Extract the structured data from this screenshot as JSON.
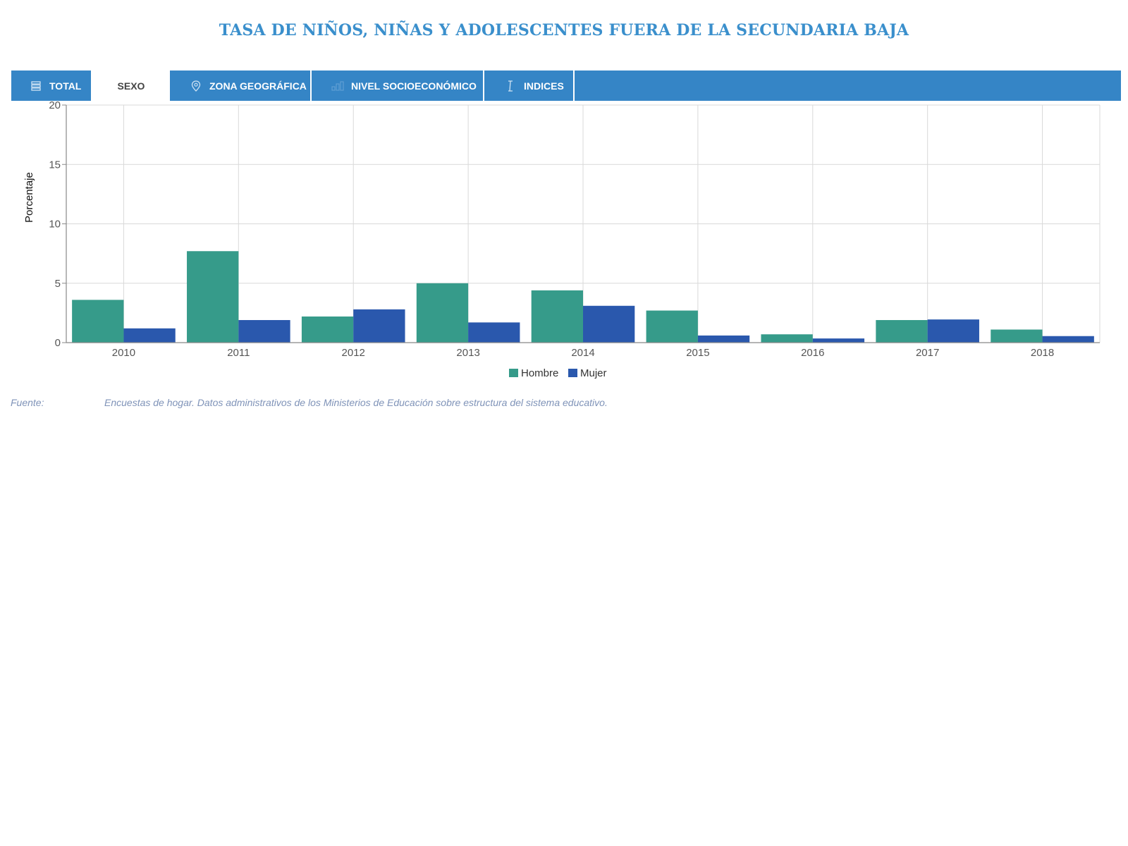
{
  "title": "TASA DE NIÑOS, NIÑAS Y ADOLESCENTES FUERA DE LA SECUNDARIA BAJA",
  "tabs": [
    {
      "label": "TOTAL",
      "icon": "list-icon",
      "active": false
    },
    {
      "label": "SEXO",
      "icon": "",
      "active": true
    },
    {
      "label": "ZONA GEOGRÁFICA",
      "icon": "map-pin-icon",
      "active": false
    },
    {
      "label": "NIVEL SOCIOECONÓMICO",
      "icon": "bar-levels-icon",
      "active": false
    },
    {
      "label": "INDICES",
      "icon": "i-beam-icon",
      "active": false
    }
  ],
  "colors": {
    "title": "#3a8fcc",
    "tabbar": "#3585c6",
    "hombre": "#369b8a",
    "mujer": "#2a58ad"
  },
  "chart_data": {
    "type": "bar",
    "categories": [
      "2010",
      "2011",
      "2012",
      "2013",
      "2014",
      "2015",
      "2016",
      "2017",
      "2018"
    ],
    "series": [
      {
        "name": "Hombre",
        "color": "#369b8a",
        "values": [
          3.6,
          7.7,
          2.2,
          5.0,
          4.4,
          2.7,
          0.7,
          1.9,
          1.1
        ]
      },
      {
        "name": "Mujer",
        "color": "#2a58ad",
        "values": [
          1.2,
          1.9,
          2.8,
          1.7,
          3.1,
          0.6,
          0.35,
          1.95,
          0.55
        ]
      }
    ],
    "ylabel": "Porcentaje",
    "xlabel": "",
    "ylim": [
      0,
      20
    ],
    "yticks": [
      0,
      5,
      10,
      15,
      20
    ],
    "grid": true,
    "legend": "bottom-center"
  },
  "source": {
    "label": "Fuente:",
    "text": "Encuestas de hogar. Datos administrativos de los Ministerios de Educación sobre estructura del sistema educativo."
  }
}
